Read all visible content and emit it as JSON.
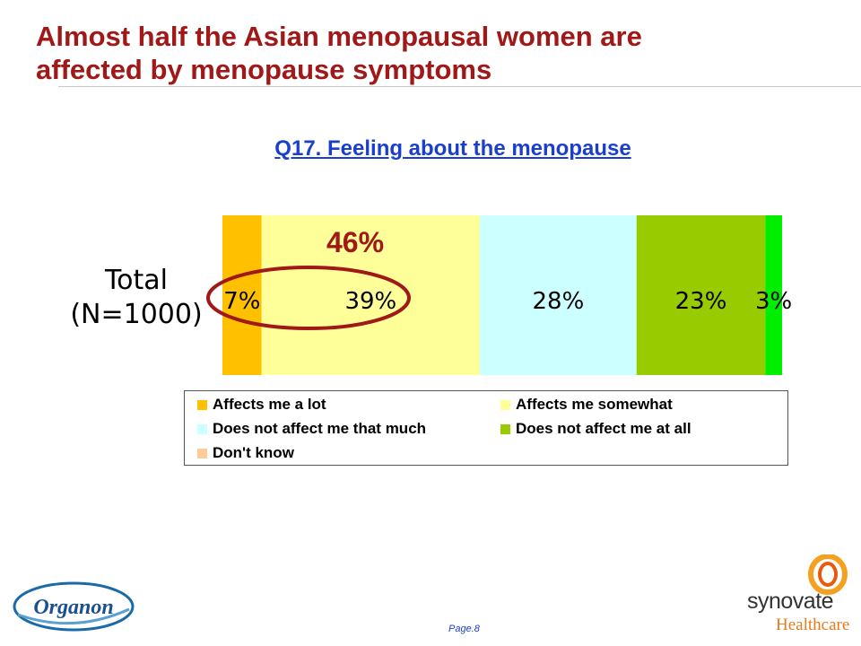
{
  "header": {
    "title_line1": "Almost half the Asian menopausal women are",
    "title_line2": "affected by menopause symptoms"
  },
  "question": "Q17. Feeling about the menopause",
  "chart_data": {
    "type": "bar",
    "orientation": "horizontal-stacked",
    "categories": [
      "Total (N=1000)"
    ],
    "category_lines": [
      "Total",
      "(N=1000)"
    ],
    "series": [
      {
        "name": "Affects me a lot",
        "values": [
          7
        ],
        "label": "7%",
        "color": "#ffc000"
      },
      {
        "name": "Affects me somewhat",
        "values": [
          39
        ],
        "label": "39%",
        "color": "#ffff99"
      },
      {
        "name": "Does not affect me that much",
        "values": [
          28
        ],
        "label": "28%",
        "color": "#ccffff"
      },
      {
        "name": "Does not affect me at all",
        "values": [
          23
        ],
        "label": "23%",
        "color": "#99cc00"
      },
      {
        "name": "Don't know",
        "values": [
          3
        ],
        "label": "3%",
        "color": "#00ee00",
        "legend_color": "#ffcc99"
      }
    ],
    "annotation": {
      "text": "46%",
      "covers": [
        "Affects me a lot",
        "Affects me somewhat"
      ],
      "color": "#a01818"
    },
    "legend_position": "bottom"
  },
  "footer": {
    "page": "Page.8",
    "logo_left": "Organon",
    "logo_right_main": "synovate",
    "logo_right_sub": "Healthcare"
  },
  "colors": {
    "title": "#a01818",
    "question": "#1a3fcc",
    "circle": "#a01818"
  }
}
